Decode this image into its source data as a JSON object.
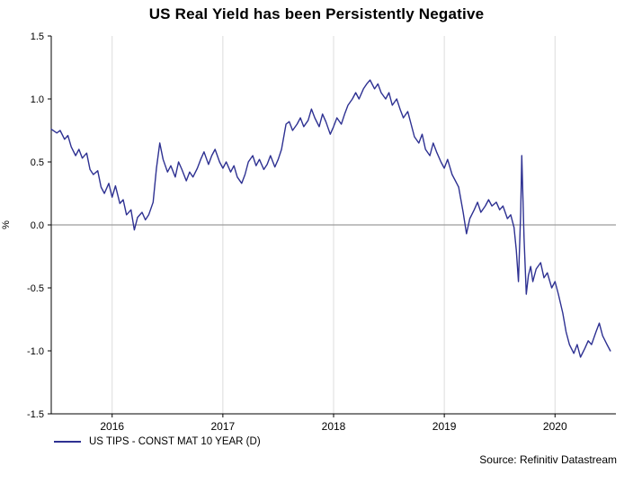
{
  "chart_data": {
    "type": "line",
    "title": "US Real Yield has been Persistently Negative",
    "xlabel": "",
    "ylabel": "%",
    "source": "Source: Refinitiv Datastream",
    "xlim": [
      2015.45,
      2020.55
    ],
    "ylim": [
      -1.5,
      1.5
    ],
    "y_tick_values": [
      1.5,
      1.0,
      0.5,
      0.0,
      -0.5,
      -1.0,
      -1.5
    ],
    "y_tick_labels": [
      "1.5",
      "1.0",
      "0.5",
      "0.0",
      "-0.5",
      "-1.0",
      "-1.5"
    ],
    "x_tick_values": [
      2016,
      2017,
      2018,
      2019,
      2020
    ],
    "x_tick_labels": [
      "2016",
      "2017",
      "2018",
      "2019",
      "2020"
    ],
    "grid": "vertical-years",
    "zero_line": true,
    "legend_position": "bottom-left",
    "colors": {
      "line": "#2e3192",
      "zero_line": "#9c9c9c",
      "grid": "#dcdcdc",
      "axis": "#000000"
    },
    "series": [
      {
        "name": "US TIPS - CONST MAT 10 YEAR (D)",
        "color": "#2e3192",
        "x": [
          2015.45,
          2015.5,
          2015.53,
          2015.57,
          2015.6,
          2015.63,
          2015.67,
          2015.7,
          2015.73,
          2015.77,
          2015.8,
          2015.83,
          2015.87,
          2015.9,
          2015.93,
          2015.97,
          2016.0,
          2016.03,
          2016.07,
          2016.1,
          2016.13,
          2016.17,
          2016.2,
          2016.23,
          2016.27,
          2016.3,
          2016.33,
          2016.37,
          2016.4,
          2016.43,
          2016.46,
          2016.5,
          2016.53,
          2016.57,
          2016.6,
          2016.63,
          2016.67,
          2016.7,
          2016.73,
          2016.77,
          2016.8,
          2016.83,
          2016.87,
          2016.9,
          2016.93,
          2016.97,
          2017.0,
          2017.03,
          2017.07,
          2017.1,
          2017.13,
          2017.17,
          2017.2,
          2017.23,
          2017.27,
          2017.3,
          2017.33,
          2017.37,
          2017.4,
          2017.43,
          2017.47,
          2017.5,
          2017.53,
          2017.57,
          2017.6,
          2017.63,
          2017.67,
          2017.7,
          2017.73,
          2017.77,
          2017.8,
          2017.83,
          2017.87,
          2017.9,
          2017.93,
          2017.97,
          2018.0,
          2018.03,
          2018.07,
          2018.1,
          2018.13,
          2018.17,
          2018.2,
          2018.23,
          2018.27,
          2018.3,
          2018.33,
          2018.37,
          2018.4,
          2018.43,
          2018.47,
          2018.5,
          2018.53,
          2018.57,
          2018.6,
          2018.63,
          2018.67,
          2018.7,
          2018.73,
          2018.77,
          2018.8,
          2018.83,
          2018.87,
          2018.9,
          2018.93,
          2018.97,
          2019.0,
          2019.03,
          2019.07,
          2019.1,
          2019.13,
          2019.17,
          2019.2,
          2019.23,
          2019.27,
          2019.3,
          2019.33,
          2019.37,
          2019.4,
          2019.43,
          2019.47,
          2019.5,
          2019.53,
          2019.57,
          2019.6,
          2019.63,
          2019.65,
          2019.67,
          2019.69,
          2019.7,
          2019.72,
          2019.74,
          2019.76,
          2019.78,
          2019.8,
          2019.83,
          2019.87,
          2019.9,
          2019.93,
          2019.97,
          2020.0,
          2020.03,
          2020.07,
          2020.1,
          2020.13,
          2020.17,
          2020.2,
          2020.23,
          2020.27,
          2020.3,
          2020.33,
          2020.37,
          2020.4,
          2020.43,
          2020.47,
          2020.5
        ],
        "values": [
          0.76,
          0.73,
          0.75,
          0.68,
          0.71,
          0.62,
          0.55,
          0.6,
          0.53,
          0.57,
          0.44,
          0.4,
          0.43,
          0.3,
          0.25,
          0.33,
          0.22,
          0.31,
          0.17,
          0.2,
          0.08,
          0.12,
          -0.04,
          0.06,
          0.1,
          0.04,
          0.08,
          0.18,
          0.45,
          0.65,
          0.52,
          0.42,
          0.47,
          0.38,
          0.5,
          0.44,
          0.35,
          0.42,
          0.38,
          0.45,
          0.52,
          0.58,
          0.48,
          0.55,
          0.6,
          0.5,
          0.45,
          0.5,
          0.42,
          0.47,
          0.38,
          0.33,
          0.4,
          0.5,
          0.55,
          0.47,
          0.52,
          0.44,
          0.48,
          0.55,
          0.46,
          0.52,
          0.6,
          0.8,
          0.82,
          0.75,
          0.8,
          0.85,
          0.78,
          0.83,
          0.92,
          0.85,
          0.78,
          0.88,
          0.82,
          0.72,
          0.78,
          0.85,
          0.8,
          0.88,
          0.95,
          1.0,
          1.05,
          1.0,
          1.08,
          1.12,
          1.15,
          1.08,
          1.12,
          1.05,
          1.0,
          1.05,
          0.95,
          1.0,
          0.92,
          0.85,
          0.9,
          0.8,
          0.7,
          0.65,
          0.72,
          0.6,
          0.55,
          0.65,
          0.58,
          0.5,
          0.45,
          0.52,
          0.4,
          0.35,
          0.3,
          0.1,
          -0.07,
          0.05,
          0.12,
          0.18,
          0.1,
          0.15,
          0.2,
          0.15,
          0.18,
          0.12,
          0.15,
          0.05,
          0.08,
          -0.02,
          -0.2,
          -0.45,
          0.1,
          0.55,
          -0.1,
          -0.55,
          -0.4,
          -0.33,
          -0.45,
          -0.35,
          -0.3,
          -0.42,
          -0.38,
          -0.5,
          -0.45,
          -0.55,
          -0.7,
          -0.85,
          -0.95,
          -1.02,
          -0.95,
          -1.05,
          -0.98,
          -0.92,
          -0.95,
          -0.85,
          -0.78,
          -0.88,
          -0.95,
          -1.0
        ]
      }
    ]
  }
}
